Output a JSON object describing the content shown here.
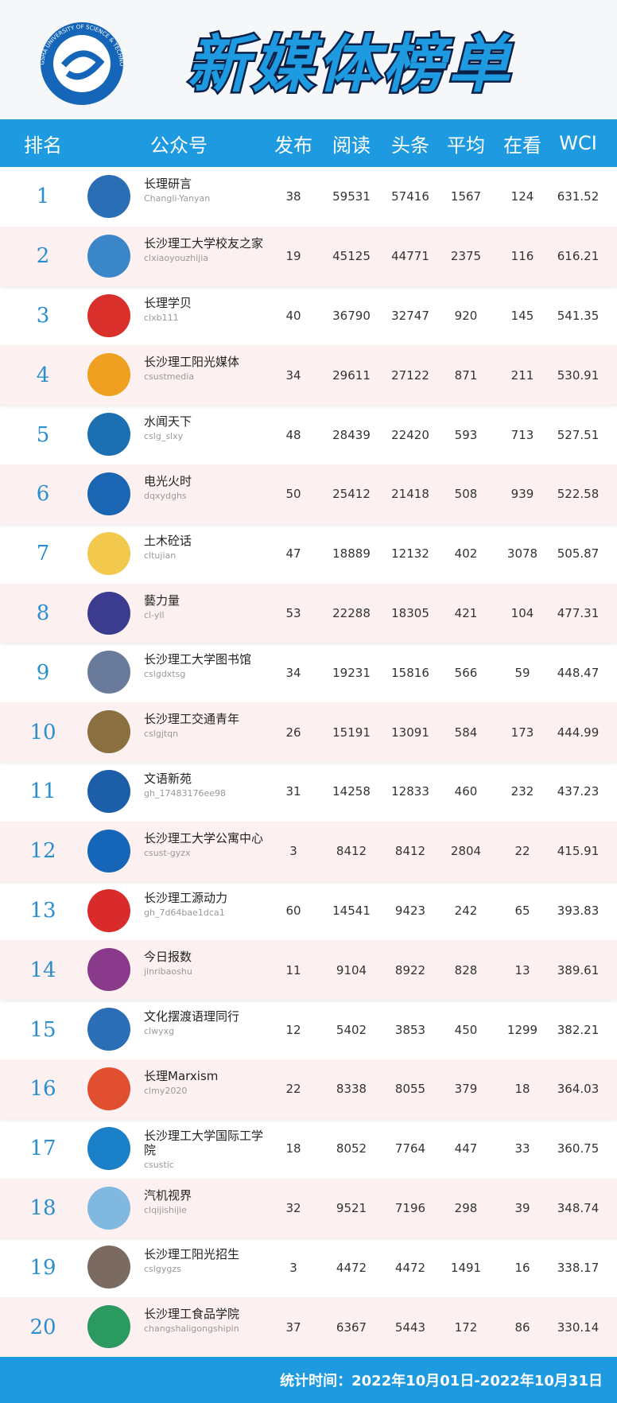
{
  "header": {
    "title": "新媒体榜单",
    "logo_text": "CHANGSHA UNIVERSITY OF SCIENCE & TECHNOLOGY"
  },
  "table": {
    "columns": [
      "排名",
      "公众号",
      "发布",
      "阅读",
      "头条",
      "平均",
      "在看",
      "WCI"
    ],
    "rows": [
      [
        1,
        "长理研言",
        "Changli-Yanyan",
        38,
        59531,
        57416,
        1567,
        124,
        631.52
      ],
      [
        2,
        "长沙理工大学校友之家",
        "clxiaoyouzhijia",
        19,
        45125,
        44771,
        2375,
        116,
        616.21
      ],
      [
        3,
        "长理学贝",
        "clxb111",
        40,
        36790,
        32747,
        920,
        145,
        541.35
      ],
      [
        4,
        "长沙理工阳光媒体",
        "csustmedia",
        34,
        29611,
        27122,
        871,
        211,
        530.91
      ],
      [
        5,
        "水闻天下",
        "cslg_slxy",
        48,
        28439,
        22420,
        593,
        713,
        527.51
      ],
      [
        6,
        "电光火时",
        "dqxydghs",
        50,
        25412,
        21418,
        508,
        939,
        522.58
      ],
      [
        7,
        "土木砼话",
        "cltujian",
        47,
        18889,
        12132,
        402,
        3078,
        505.87
      ],
      [
        8,
        "藝力量",
        "cl-yll",
        53,
        22288,
        18305,
        421,
        104,
        477.31
      ],
      [
        9,
        "长沙理工大学图书馆",
        "cslgdxtsg",
        34,
        19231,
        15816,
        566,
        59,
        448.47
      ],
      [
        10,
        "长沙理工交通青年",
        "cslgjtqn",
        26,
        15191,
        13091,
        584,
        173,
        444.99
      ],
      [
        11,
        "文语新苑",
        "gh_17483176ee98",
        31,
        14258,
        12833,
        460,
        232,
        437.23
      ],
      [
        12,
        "长沙理工大学公寓中心",
        "csust-gyzx",
        3,
        8412,
        8412,
        2804,
        22,
        415.91
      ],
      [
        13,
        "长沙理工源动力",
        "gh_7d64bae1dca1",
        60,
        14541,
        9423,
        242,
        65,
        393.83
      ],
      [
        14,
        "今日报数",
        "jinribaoshu",
        11,
        9104,
        8922,
        828,
        13,
        389.61
      ],
      [
        15,
        "文化摆渡语理同行",
        "clwyxg",
        12,
        5402,
        3853,
        450,
        1299,
        382.21
      ],
      [
        16,
        "长理Marxism",
        "clmy2020",
        22,
        8338,
        8055,
        379,
        18,
        364.03
      ],
      [
        17,
        "长沙理工大学国际工学院",
        "csustic",
        18,
        8052,
        7764,
        447,
        33,
        360.75
      ],
      [
        18,
        "汽机视界",
        "clqijishijie",
        32,
        9521,
        7196,
        298,
        39,
        348.74
      ],
      [
        19,
        "长沙理工阳光招生",
        "cslgygzs",
        3,
        4472,
        4472,
        1491,
        16,
        338.17
      ],
      [
        20,
        "长沙理工食品学院",
        "changshaligongshipin",
        37,
        6367,
        5443,
        172,
        86,
        330.14
      ]
    ]
  },
  "footer": {
    "text": "统计时间：2022年10月01日-2022年10月31日"
  }
}
